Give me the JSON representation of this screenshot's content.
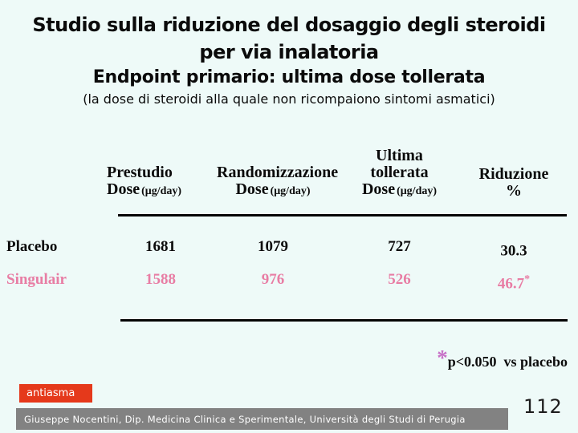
{
  "slide": {
    "title_line1": "Studio sulla riduzione del dosaggio degli steroidi",
    "title_line2": "per via inalatoria",
    "subtitle": "Endpoint primario: ultima dose tollerata",
    "subnote": "(la dose di steroidi alla quale non ricompaiono sintomi asmatici)"
  },
  "table": {
    "headers": {
      "col1_title": "Prestudio",
      "col1_dose": "Dose",
      "col1_unit": "(μg/day)",
      "col2_title": "Randomizzazione",
      "col2_dose": "Dose",
      "col2_unit": "(μg/day)",
      "col3_pre": "Ultima",
      "col3_title": "tollerata",
      "col3_dose": "Dose",
      "col3_unit": "(μg/day)",
      "col4_title": "Riduzione",
      "col4_unit": "%"
    },
    "rows": [
      {
        "label": "Placebo",
        "prestudio": "1681",
        "randomizzazione": "1079",
        "ultima_tollerata": "727",
        "riduzione": "30.3",
        "star": ""
      },
      {
        "label": "Singulair",
        "prestudio": "1588",
        "randomizzazione": "976",
        "ultima_tollerata": "526",
        "riduzione": "46.7",
        "star": "*"
      }
    ]
  },
  "footnote": {
    "star": "*",
    "text": "p<0.050  vs placebo"
  },
  "footer": {
    "tag": "antiasma",
    "credit": "Giuseppe Nocentini, Dip. Medicina Clinica e Sperimentale, Università degli Studi di Perugia",
    "page_number": "112"
  },
  "colors": {
    "background": "#eefaf8",
    "singulair_pink": "#e87da4",
    "footnote_star": "#c76fc7",
    "tag_bg": "#e5391b",
    "footer_bar_bg": "#828282"
  }
}
